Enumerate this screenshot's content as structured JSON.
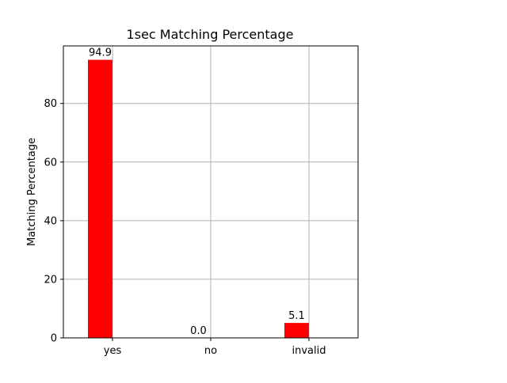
{
  "chart_data": {
    "type": "bar",
    "title": "1sec Matching Percentage",
    "xlabel": "",
    "ylabel": "Matching Percentage",
    "categories": [
      "yes",
      "no",
      "invalid"
    ],
    "values": [
      94.9,
      0.0,
      5.1
    ],
    "value_labels": [
      "94.9",
      "0.0",
      "5.1"
    ],
    "ylim": [
      0,
      99.645
    ],
    "yticks": [
      0,
      20,
      40,
      60,
      80
    ],
    "ytick_labels": [
      "0",
      "20",
      "40",
      "60",
      "80"
    ],
    "grid": true,
    "bar_color": "#ff0000",
    "grid_color": "#b0b0b0"
  }
}
